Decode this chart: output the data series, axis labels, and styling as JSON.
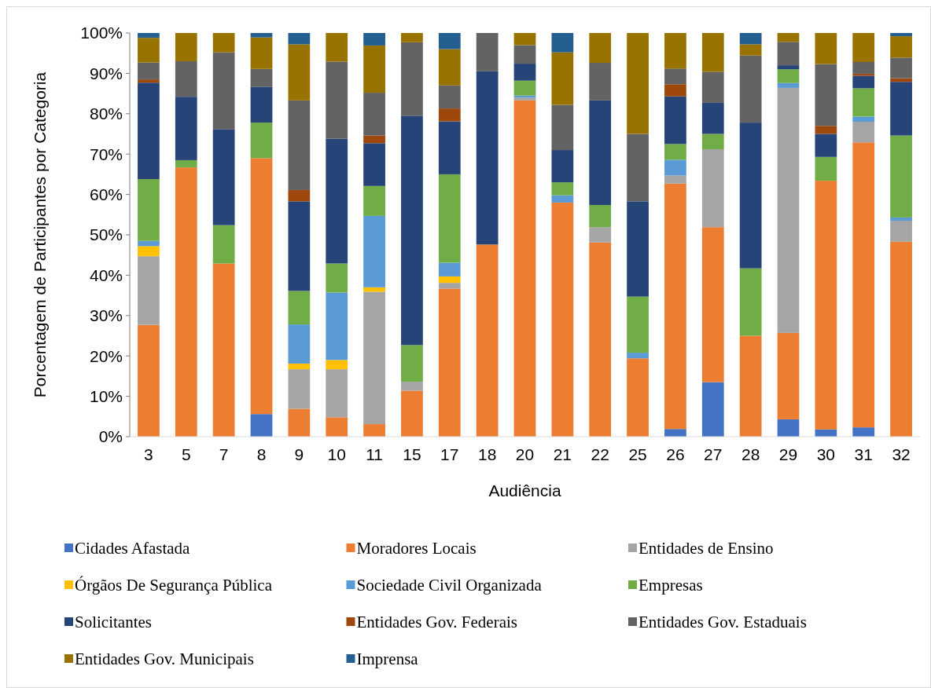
{
  "chart_data": {
    "type": "bar",
    "stacked": true,
    "xlabel": "Audiência",
    "ylabel": "Porcentagem de Participantes por Categoria",
    "categories": [
      "3",
      "5",
      "7",
      "8",
      "9",
      "10",
      "11",
      "15",
      "17",
      "18",
      "20",
      "21",
      "22",
      "25",
      "26",
      "27",
      "28",
      "29",
      "30",
      "31",
      "32"
    ],
    "ylim": [
      0,
      100
    ],
    "yticks": [
      {
        "value": 0,
        "label": "0%"
      },
      {
        "value": 10,
        "label": "10%"
      },
      {
        "value": 20,
        "label": "20%"
      },
      {
        "value": 30,
        "label": "30%"
      },
      {
        "value": 40,
        "label": "40%"
      },
      {
        "value": 50,
        "label": "50%"
      },
      {
        "value": 60,
        "label": "60%"
      },
      {
        "value": 70,
        "label": "70%"
      },
      {
        "value": 80,
        "label": "80%"
      },
      {
        "value": 90,
        "label": "90%"
      },
      {
        "value": 100,
        "label": "100%"
      }
    ],
    "legend": "bottom",
    "series": [
      {
        "name": "Cidades Afastada",
        "color": "#4472c4",
        "values": [
          0,
          0,
          0,
          5.6,
          0,
          0,
          0,
          0,
          0,
          0,
          0,
          0,
          0,
          0,
          1.9,
          13.5,
          0,
          4.3,
          1.8,
          2.3,
          0
        ]
      },
      {
        "name": "Moradores Locais",
        "color": "#ed7d31",
        "values": [
          27.7,
          66.7,
          42.9,
          63.4,
          6.9,
          4.8,
          3.1,
          11.4,
          36.7,
          47.6,
          83.3,
          58,
          48.1,
          19.4,
          60.8,
          38.4,
          25,
          21.4,
          61.6,
          70.6,
          48.3
        ]
      },
      {
        "name": "Entidades de Ensino",
        "color": "#a5a5a5",
        "values": [
          17,
          0,
          0,
          0,
          9.8,
          11.9,
          32.8,
          2.2,
          1.4,
          0,
          0.7,
          0,
          3.8,
          0,
          2,
          19.3,
          0,
          60.7,
          0,
          5.1,
          5.2
        ]
      },
      {
        "name": "Órgãos De Segurança Pública",
        "color": "#ffc000",
        "values": [
          2.5,
          0,
          0,
          0,
          1.4,
          2.3,
          1.1,
          0,
          1.6,
          0,
          0,
          0,
          0,
          0,
          0,
          0,
          0,
          0,
          0,
          0,
          0
        ]
      },
      {
        "name": "Sociedade Civil Organizada",
        "color": "#5b9bd5",
        "values": [
          1.3,
          0,
          0,
          0,
          9.7,
          16.7,
          17.7,
          0,
          3.4,
          0,
          0.5,
          1.8,
          0,
          1.4,
          3.9,
          0,
          0,
          1.2,
          0,
          1.3,
          0.8
        ]
      },
      {
        "name": "Empresas",
        "color": "#70ad47",
        "values": [
          15.3,
          1.8,
          9.5,
          8.8,
          8.3,
          7.2,
          7.4,
          9.1,
          21.9,
          0,
          3.7,
          3.2,
          5.5,
          13.9,
          3.9,
          3.8,
          16.7,
          3.4,
          5.9,
          7,
          20.3
        ]
      },
      {
        "name": "Solicitantes",
        "color": "#264478",
        "values": [
          23.9,
          15.7,
          23.8,
          8.9,
          22.2,
          30.9,
          10.6,
          56.8,
          13.1,
          42.9,
          4.2,
          8,
          25.9,
          23.6,
          11.8,
          7.7,
          36.1,
          1,
          5.7,
          3.1,
          13.3
        ]
      },
      {
        "name": "Entidades Gov. Federais",
        "color": "#9e480e",
        "values": [
          0.8,
          0,
          0,
          0,
          2.8,
          0,
          1.9,
          0,
          3.2,
          0,
          0,
          0,
          0,
          0,
          3,
          0,
          0,
          0,
          2,
          0.5,
          0.9
        ]
      },
      {
        "name": "Entidades Gov. Estaduais",
        "color": "#636363",
        "values": [
          4.2,
          8.8,
          19,
          4.4,
          22.2,
          19.1,
          10.6,
          18.2,
          5.7,
          9.5,
          4.6,
          11.2,
          9.3,
          16.7,
          3.9,
          7.7,
          16.6,
          5.8,
          15.3,
          2.9,
          5.1
        ]
      },
      {
        "name": "Entidades Gov. Municipais",
        "color": "#997300",
        "values": [
          6.1,
          7,
          4.8,
          7.8,
          13.9,
          7.1,
          11.7,
          2.3,
          9,
          0,
          3,
          13,
          7.4,
          25,
          8.8,
          9.6,
          2.8,
          2.2,
          7.7,
          7.2,
          5.3
        ]
      },
      {
        "name": "Imprensa",
        "color": "#255e91",
        "values": [
          1.2,
          0,
          0,
          1.1,
          2.8,
          0,
          3.1,
          0,
          4,
          0,
          0,
          4.8,
          0,
          0,
          0,
          0,
          2.8,
          0,
          0,
          0,
          0.8
        ]
      }
    ]
  }
}
